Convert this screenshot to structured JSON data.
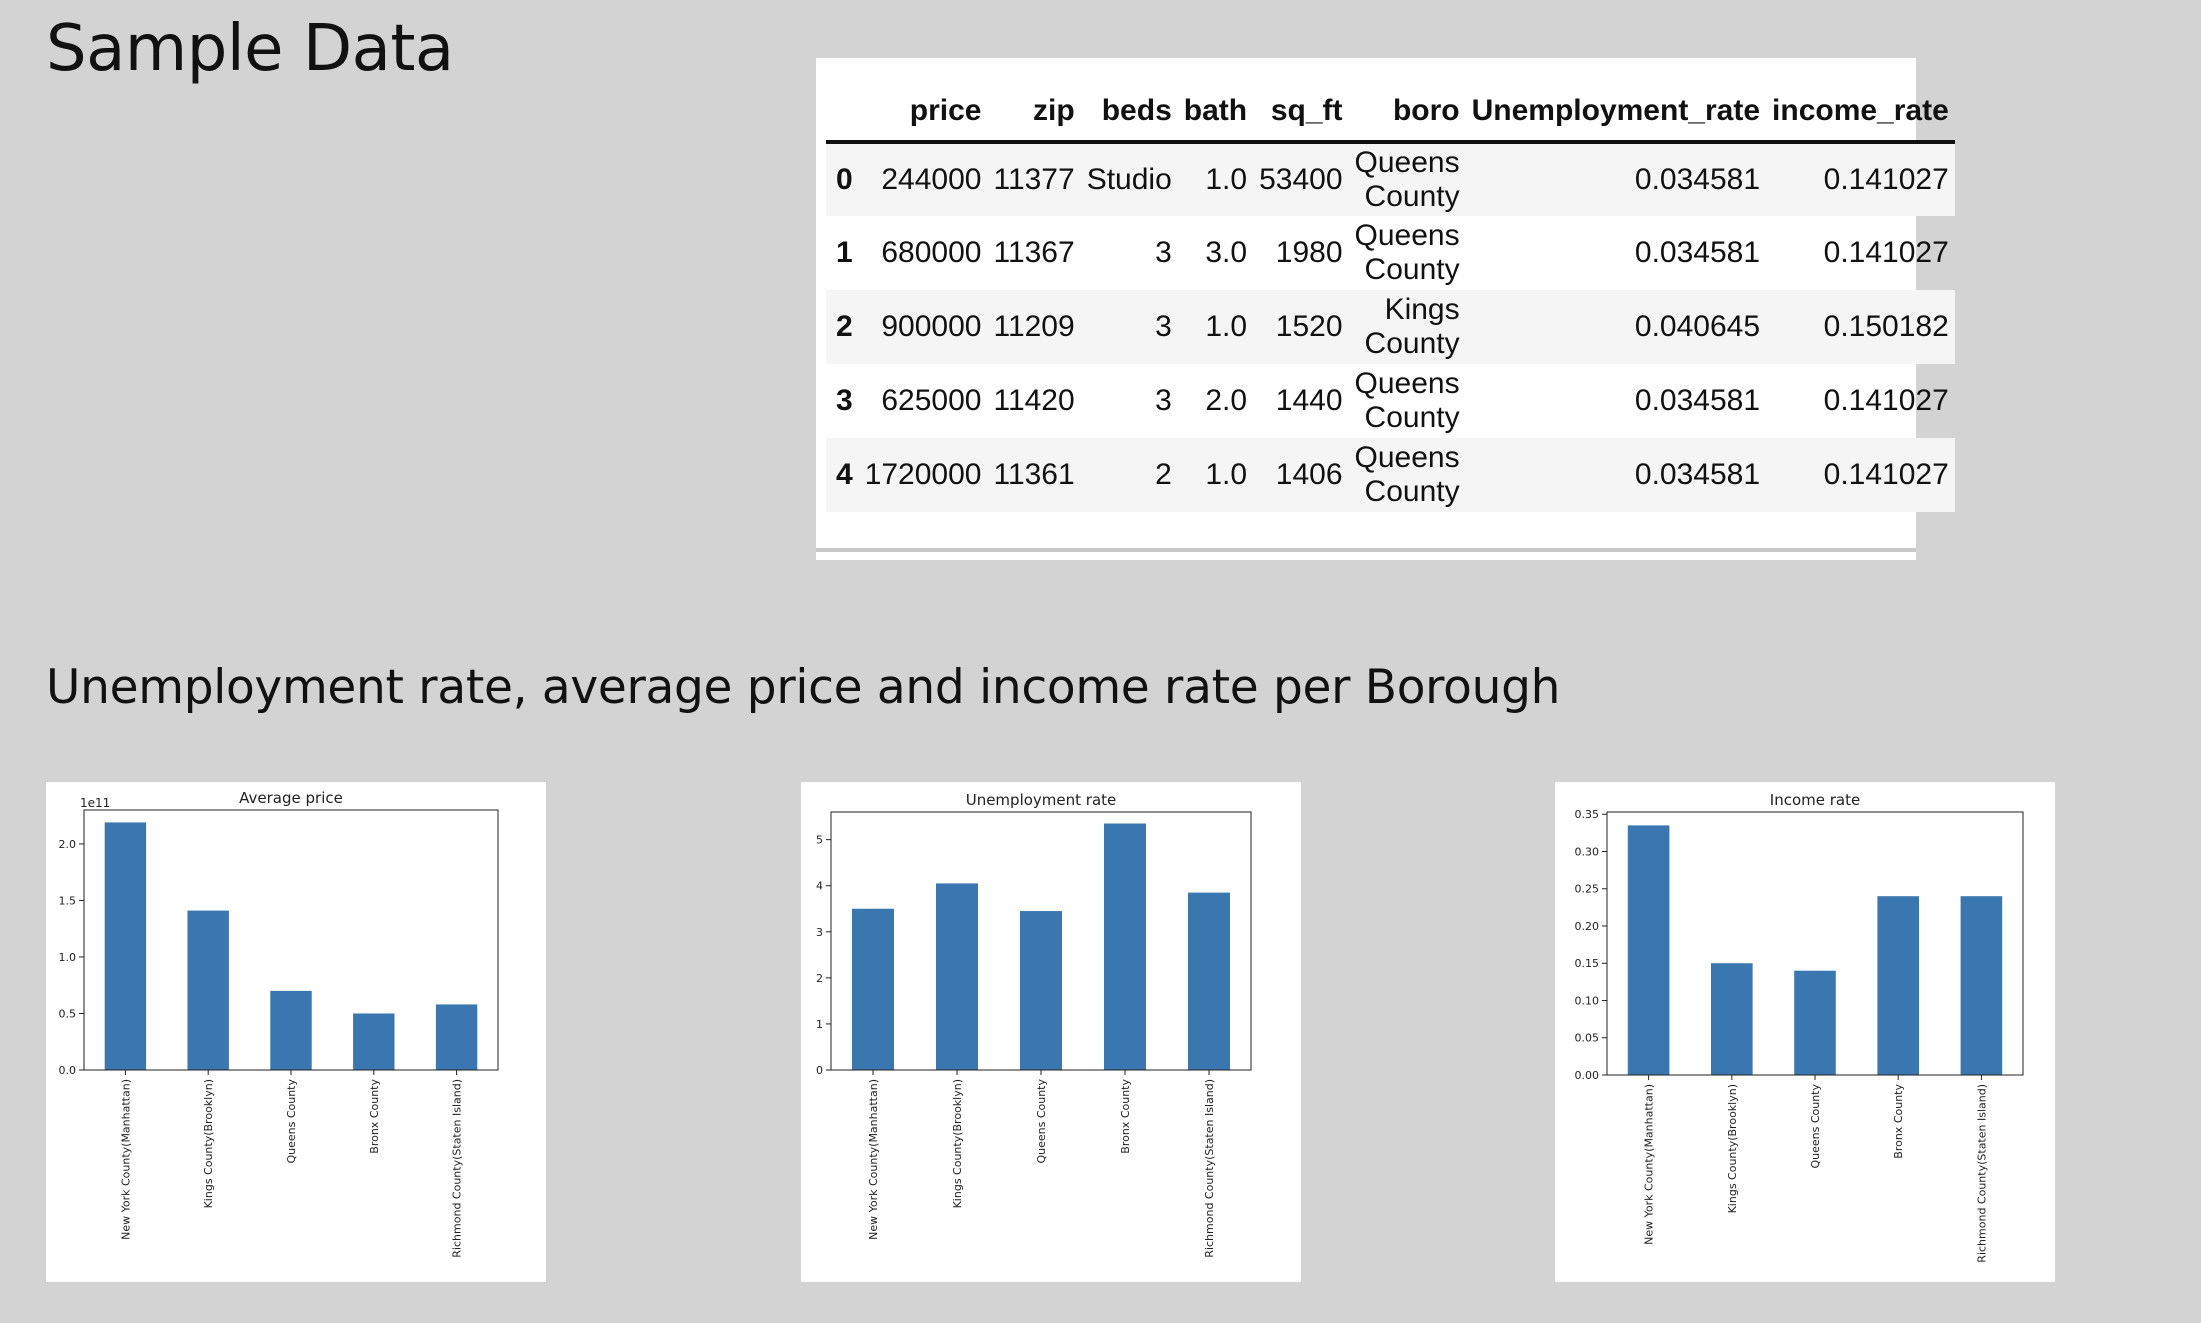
{
  "headings": {
    "sample": "Sample Data",
    "section": "Unemployment rate, average price and income rate per Borough"
  },
  "table": {
    "columns": [
      "",
      "price",
      "zip",
      "beds",
      "bath",
      "sq_ft",
      "boro",
      "Unemployment_rate",
      "income_rate"
    ],
    "rows": [
      [
        "0",
        "244000",
        "11377",
        "Studio",
        "1.0",
        "53400",
        "Queens County",
        "0.034581",
        "0.141027"
      ],
      [
        "1",
        "680000",
        "11367",
        "3",
        "3.0",
        "1980",
        "Queens County",
        "0.034581",
        "0.141027"
      ],
      [
        "2",
        "900000",
        "11209",
        "3",
        "1.0",
        "1520",
        "Kings County",
        "0.040645",
        "0.150182"
      ],
      [
        "3",
        "625000",
        "11420",
        "3",
        "2.0",
        "1440",
        "Queens County",
        "0.034581",
        "0.141027"
      ],
      [
        "4",
        "1720000",
        "11361",
        "2",
        "1.0",
        "1406",
        "Queens County",
        "0.034581",
        "0.141027"
      ]
    ]
  },
  "chart_data": [
    {
      "type": "bar",
      "title": "Average price",
      "categories": [
        "New York County(Manhattan)",
        "Kings County(Brooklyn)",
        "Queens County",
        "Bronx County",
        "Richmond County(Staten Island)"
      ],
      "values": [
        2.19,
        1.41,
        0.7,
        0.5,
        0.58
      ],
      "yticks": [
        "0.0",
        "0.5",
        "1.0",
        "1.5",
        "2.0"
      ],
      "ylim": [
        0,
        2.3
      ],
      "offset_label": "1e11",
      "color": "#3a76af",
      "grid": false,
      "legend": false
    },
    {
      "type": "bar",
      "title": "Unemployment rate",
      "categories": [
        "New York County(Manhattan)",
        "Kings County(Brooklyn)",
        "Queens County",
        "Bronx County",
        "Richmond County(Staten Island)"
      ],
      "values": [
        3.5,
        4.05,
        3.45,
        5.35,
        3.85
      ],
      "yticks": [
        "0",
        "1",
        "2",
        "3",
        "4",
        "5"
      ],
      "ylim": [
        0,
        5.6
      ],
      "offset_label": "",
      "color": "#3a76af",
      "grid": false,
      "legend": false
    },
    {
      "type": "bar",
      "title": "Income rate",
      "categories": [
        "New York County(Manhattan)",
        "Kings County(Brooklyn)",
        "Queens County",
        "Bronx County",
        "Richmond County(Staten Island)"
      ],
      "values": [
        0.335,
        0.15,
        0.14,
        0.24,
        0.24
      ],
      "yticks": [
        "0.00",
        "0.05",
        "0.10",
        "0.15",
        "0.20",
        "0.25",
        "0.30",
        "0.35"
      ],
      "ylim": [
        0,
        0.353
      ],
      "offset_label": "",
      "color": "#3a76af",
      "grid": false,
      "legend": false
    }
  ]
}
